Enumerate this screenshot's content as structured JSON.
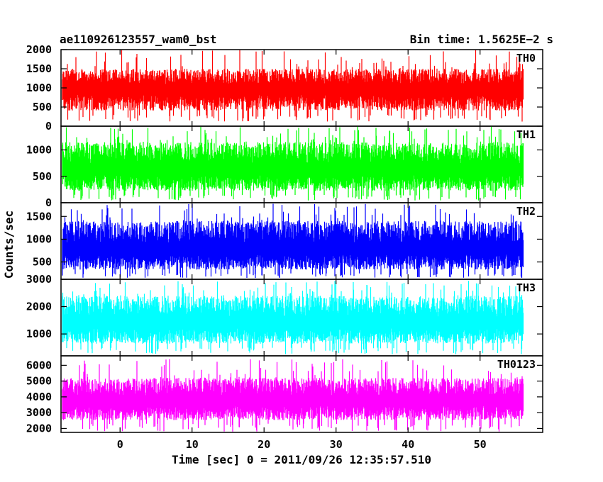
{
  "chart_data": {
    "type": "line",
    "title_left": "ae110926123557_wam0_bst",
    "title_right": "Bin time: 1.5625E−2 s",
    "xlabel": "Time [sec] 0 = 2011/09/26 12:35:57.510",
    "ylabel": "Counts/sec",
    "xlim": [
      -8.2,
      58.7
    ],
    "data_range": [
      -8,
      56
    ],
    "xticks": [
      0,
      10,
      20,
      30,
      40,
      50
    ],
    "xtick_labels": [
      "0",
      "10",
      "20",
      "30",
      "40",
      "50"
    ],
    "grid": false,
    "panels": [
      {
        "name": "TH0",
        "color": "#ff0000",
        "ylim": [
          0,
          2000
        ],
        "yticks": [
          0,
          500,
          1000,
          1500,
          2000
        ],
        "ytick_labels": [
          "0",
          "500",
          "1000",
          "1500",
          "2000"
        ],
        "baseline": 1000,
        "typical_low": 300,
        "typical_high": 1500,
        "min": 120,
        "max": 2000
      },
      {
        "name": "TH1",
        "color": "#00ff00",
        "ylim": [
          0,
          1450
        ],
        "yticks": [
          0,
          500,
          1000
        ],
        "ytick_labels": [
          "0",
          "500",
          "1000"
        ],
        "baseline": 650,
        "typical_low": 150,
        "typical_high": 1150,
        "min": 40,
        "max": 1450
      },
      {
        "name": "TH2",
        "color": "#0000ff",
        "ylim": [
          120,
          1800
        ],
        "yticks": [
          500,
          1000,
          1500
        ],
        "ytick_labels": [
          "500",
          "1000",
          "1500"
        ],
        "baseline": 800,
        "typical_low": 250,
        "typical_high": 1400,
        "min": 150,
        "max": 1780
      },
      {
        "name": "TH3",
        "color": "#00ffff",
        "ylim": [
          200,
          3000
        ],
        "yticks": [
          1000,
          2000,
          3000
        ],
        "ytick_labels": [
          "1000",
          "2000",
          "3000"
        ],
        "baseline": 1450,
        "typical_low": 500,
        "typical_high": 2400,
        "min": 250,
        "max": 2950
      },
      {
        "name": "TH0123",
        "color": "#ff00ff",
        "ylim": [
          1750,
          6600
        ],
        "yticks": [
          2000,
          3000,
          4000,
          5000,
          6000
        ],
        "ytick_labels": [
          "2000",
          "3000",
          "4000",
          "5000",
          "6000"
        ],
        "baseline": 3800,
        "typical_low": 2300,
        "typical_high": 5200,
        "min": 1800,
        "max": 6400
      }
    ]
  }
}
